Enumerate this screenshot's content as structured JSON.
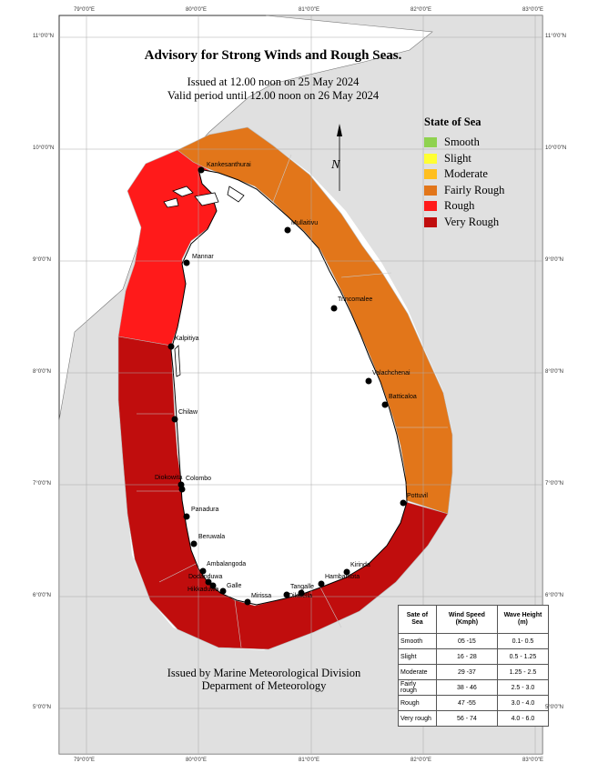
{
  "title": "Advisory for Strong Winds and Rough Seas.",
  "issued": "Issued at 12.00 noon on 25 May 2024",
  "valid": "Valid period until 12.00 noon on 26 May 2024",
  "legend": {
    "title": "State of Sea",
    "items": [
      {
        "label": "Smooth",
        "color": "#8fd24f"
      },
      {
        "label": "Slight",
        "color": "#ffff33"
      },
      {
        "label": "Moderate",
        "color": "#ffbf1f"
      },
      {
        "label": "Fairly Rough",
        "color": "#e2761a"
      },
      {
        "label": "Rough",
        "color": "#ff1a1a"
      },
      {
        "label": "Very Rough",
        "color": "#c00d0d"
      }
    ]
  },
  "footer": {
    "line1": "Issued by Marine Meteorological Division",
    "line2": "Deparment of Meteorology"
  },
  "table": {
    "headers": [
      "Sate of Sea",
      "Wind Speed (Kmph)",
      "Wave Height (m)"
    ],
    "rows": [
      [
        "Smooth",
        "05 -15",
        "0.1- 0.5"
      ],
      [
        "Slight",
        "16 - 28",
        "0.5 - 1.25"
      ],
      [
        "Moderate",
        "29 -37",
        "1.25 - 2.5"
      ],
      [
        "Fairly rough",
        "38 - 46",
        "2.5 - 3.0"
      ],
      [
        "Rough",
        "47 -55",
        "3.0 - 4.0"
      ],
      [
        "Very rough",
        "56 - 74",
        "4.0 - 6.0"
      ]
    ]
  },
  "axes": {
    "lon": [
      "79°0'0\"E",
      "80°0'0\"E",
      "81°0'0\"E",
      "82°0'0\"E",
      "83°0'0\"E"
    ],
    "lat": [
      "11°0'0\"N",
      "10°0'0\"N",
      "9°0'0\"N",
      "8°0'0\"N",
      "7°0'0\"N",
      "6°0'0\"N",
      "5°0'0\"N"
    ]
  },
  "places": [
    "Kankesanthurai",
    "Mullaitivu",
    "Mannar",
    "Trincomalee",
    "Kalpitiya",
    "Valachchenai",
    "Batticaloa",
    "Chilaw",
    "Diokowita",
    "Colombo",
    "Panadura",
    "Pottuvil",
    "Beruwala",
    "Ambalangoda",
    "Kirinda",
    "Hambantota",
    "Dodanduwa",
    "Galle",
    "Hikkaduwa",
    "Tangalle",
    "Dikwella",
    "Mirissa"
  ],
  "north_arrow": "N",
  "colors": {
    "land_outside": "#e0e0e0",
    "sea_zone_bg": "#ffffff",
    "grid": "#aaaaaa"
  }
}
